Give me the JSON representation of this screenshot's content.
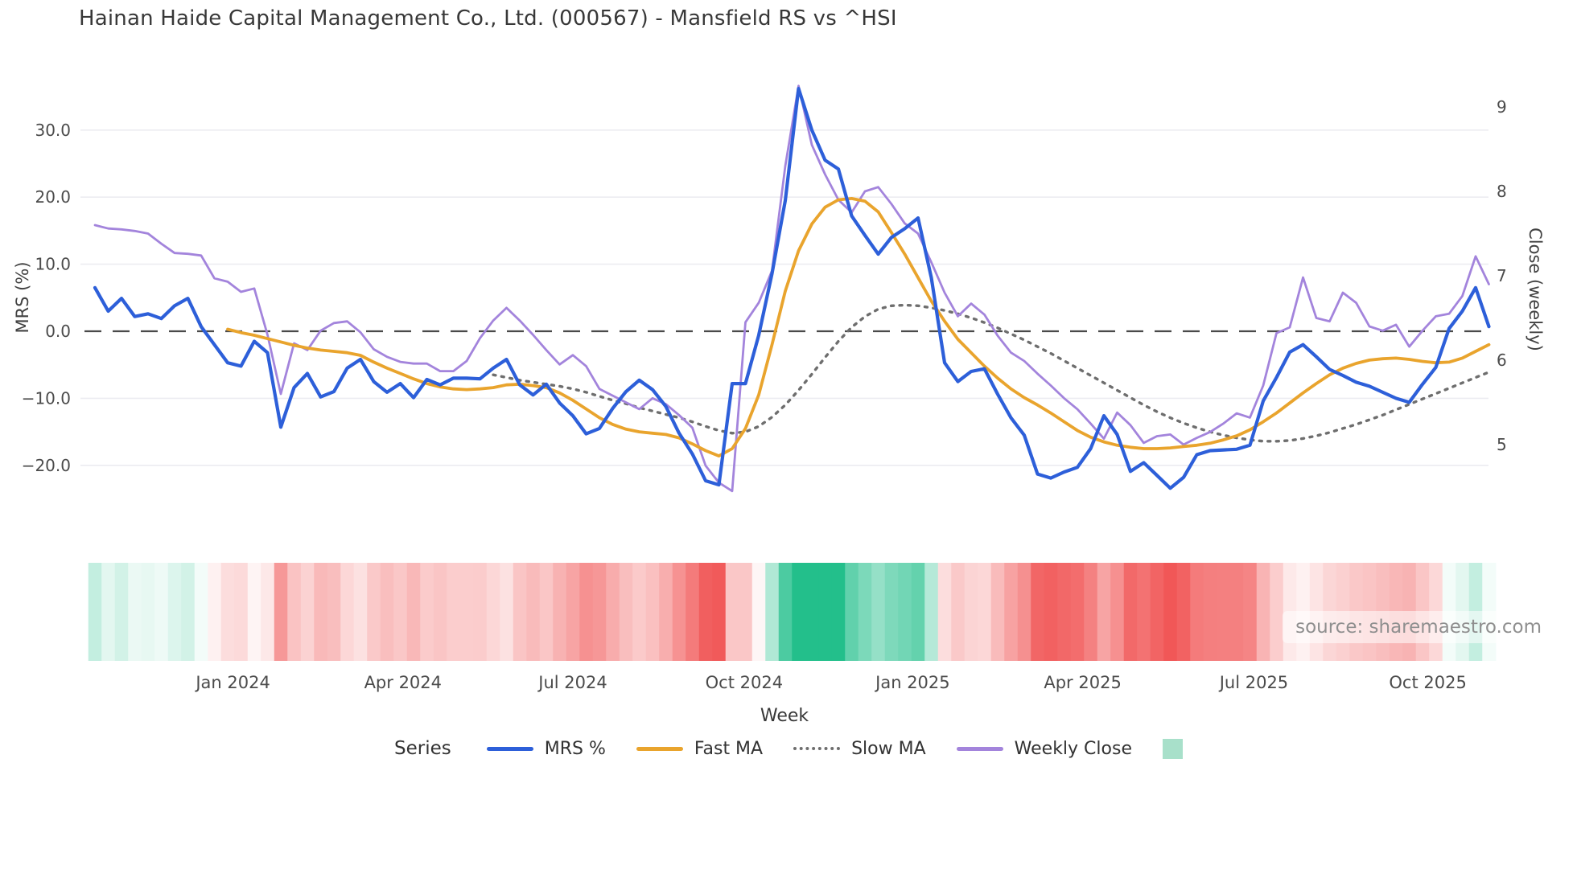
{
  "title": "Hainan Haide Capital Management Co., Ltd. (000567) - Mansfield RS vs ^HSI",
  "watermark": "source: sharemaestro.com",
  "x_axis_title": "Week",
  "legend": {
    "title": "Series",
    "items": [
      {
        "label": "MRS %",
        "swatch": "line",
        "color": "#2d5fd9"
      },
      {
        "label": "Fast MA",
        "swatch": "line",
        "color": "#e9a42d"
      },
      {
        "label": "Slow MA",
        "swatch": "dotted-line",
        "color": "#6e6e6e"
      },
      {
        "label": "Weekly Close",
        "swatch": "line",
        "color": "#a384dc"
      },
      {
        "label": "",
        "swatch": "square",
        "color": "#a8e0ca"
      }
    ]
  },
  "colors": {
    "mrs_line": "#2d5fd9",
    "fast_ma_line": "#e9a42d",
    "slow_ma_line": "#6e6e6e",
    "weekly_close_line": "#a384dc",
    "zero_dash_line": "#4a4a4a",
    "gridline": "#ececf1",
    "tick_text": "#4b4b4b",
    "heat_positive": "#10b981",
    "heat_negative": "#ef4444",
    "legend_square": "#a8e0ca"
  },
  "chart_data": {
    "type": "line",
    "title": "Hainan Haide Capital Management Co., Ltd. (000567) - Mansfield RS vs ^HSI",
    "x_label": "Week",
    "n_weeks": 106,
    "weeks_start_date": "2023-10-23",
    "left_axis": {
      "label": "MRS (%)",
      "tick_labels": [
        "30.0",
        "20.0",
        "10.0",
        "0.0",
        "−10.0",
        "−20.0"
      ],
      "tick_values": [
        30,
        20,
        10,
        0,
        -10,
        -20
      ],
      "range": [
        -26,
        39
      ],
      "zero_line_dashed": true,
      "grid": true
    },
    "right_axis": {
      "label": "Close (weekly)",
      "tick_labels": [
        "9",
        "8",
        "7",
        "6",
        "5"
      ],
      "tick_values": [
        9,
        8,
        7,
        6,
        5
      ],
      "range": [
        4.3,
        9.45
      ],
      "grid": false
    },
    "x_ticks": [
      {
        "label": "Jan 2024",
        "week_index": 10.4
      },
      {
        "label": "Apr 2024",
        "week_index": 23.2
      },
      {
        "label": "Jul 2024",
        "week_index": 36.0
      },
      {
        "label": "Oct 2024",
        "week_index": 48.9
      },
      {
        "label": "Jan 2025",
        "week_index": 61.6
      },
      {
        "label": "Apr 2025",
        "week_index": 74.4
      },
      {
        "label": "Jul 2025",
        "week_index": 87.3
      },
      {
        "label": "Oct 2025",
        "week_index": 100.4
      }
    ],
    "series": [
      {
        "name": "MRS %",
        "axis": "left",
        "style": "solid",
        "width": 4.2,
        "color": "#2d5fd9",
        "values": [
          6.5,
          3.0,
          4.9,
          2.2,
          2.6,
          1.9,
          3.8,
          4.9,
          0.7,
          -2.0,
          -4.7,
          -5.2,
          -1.5,
          -3.2,
          -14.3,
          -8.4,
          -6.3,
          -9.8,
          -9.0,
          -5.5,
          -4.2,
          -7.5,
          -9.1,
          -7.8,
          -9.9,
          -7.2,
          -8.0,
          -7.0,
          -7.0,
          -7.1,
          -5.5,
          -4.2,
          -8.0,
          -9.5,
          -7.9,
          -10.7,
          -12.6,
          -15.3,
          -14.5,
          -11.5,
          -9.0,
          -7.3,
          -8.7,
          -11.2,
          -15.2,
          -18.3,
          -22.3,
          -22.9,
          -7.8,
          -7.8,
          -0.6,
          8.6,
          19.5,
          36.2,
          30.0,
          25.5,
          24.2,
          17.2,
          14.3,
          11.5,
          14.0,
          15.3,
          16.9,
          8.0,
          -4.7,
          -7.5,
          -6.0,
          -5.6,
          -9.4,
          -12.9,
          -15.5,
          -21.3,
          -21.9,
          -21.0,
          -20.3,
          -17.5,
          -12.6,
          -15.4,
          -20.9,
          -19.6,
          -21.5,
          -23.4,
          -21.8,
          -18.4,
          -17.8,
          -17.7,
          -17.6,
          -17.0,
          -10.4,
          -6.9,
          -3.1,
          -2.0,
          -3.8,
          -5.7,
          -6.6,
          -7.6,
          -8.2,
          -9.1,
          -10.0,
          -10.6,
          -7.9,
          -5.4,
          0.4,
          3.0,
          6.5,
          0.7
        ]
      },
      {
        "name": "Fast MA",
        "axis": "left",
        "style": "solid",
        "width": 3.8,
        "color": "#e9a42d",
        "values": [
          null,
          null,
          null,
          null,
          null,
          null,
          null,
          null,
          null,
          null,
          0.3,
          -0.2,
          -0.6,
          -1.1,
          -1.6,
          -2.1,
          -2.5,
          -2.8,
          -3.0,
          -3.2,
          -3.6,
          -4.6,
          -5.5,
          -6.3,
          -7.1,
          -7.8,
          -8.3,
          -8.6,
          -8.7,
          -8.6,
          -8.4,
          -8.0,
          -7.9,
          -8.1,
          -8.4,
          -9.2,
          -10.3,
          -11.6,
          -12.9,
          -13.9,
          -14.6,
          -15.0,
          -15.2,
          -15.4,
          -15.9,
          -16.8,
          -17.8,
          -18.6,
          -17.5,
          -14.5,
          -9.5,
          -2.0,
          6.0,
          12.0,
          16.0,
          18.5,
          19.6,
          19.8,
          19.4,
          17.8,
          14.7,
          11.5,
          8.0,
          4.5,
          1.5,
          -1.2,
          -3.2,
          -5.2,
          -7.0,
          -8.6,
          -9.9,
          -11.0,
          -12.2,
          -13.5,
          -14.8,
          -15.8,
          -16.5,
          -17.0,
          -17.3,
          -17.5,
          -17.5,
          -17.4,
          -17.2,
          -17.0,
          -16.7,
          -16.2,
          -15.6,
          -14.7,
          -13.5,
          -12.2,
          -10.7,
          -9.2,
          -7.8,
          -6.5,
          -5.5,
          -4.8,
          -4.3,
          -4.1,
          -4.0,
          -4.2,
          -4.5,
          -4.7,
          -4.6,
          -4.0,
          -3.0,
          -2.0
        ]
      },
      {
        "name": "Slow MA",
        "axis": "left",
        "style": "dotted",
        "width": 3.4,
        "color": "#6e6e6e",
        "values": [
          null,
          null,
          null,
          null,
          null,
          null,
          null,
          null,
          null,
          null,
          null,
          null,
          null,
          null,
          null,
          null,
          null,
          null,
          null,
          null,
          null,
          null,
          null,
          null,
          null,
          null,
          null,
          null,
          null,
          null,
          -6.5,
          -6.9,
          -7.3,
          -7.6,
          -7.9,
          -8.2,
          -8.6,
          -9.1,
          -9.7,
          -10.3,
          -10.8,
          -11.4,
          -11.9,
          -12.4,
          -12.9,
          -13.5,
          -14.2,
          -14.8,
          -15.2,
          -15.0,
          -14.2,
          -12.8,
          -11.0,
          -8.8,
          -6.4,
          -3.9,
          -1.5,
          0.6,
          2.2,
          3.3,
          3.8,
          3.9,
          3.8,
          3.5,
          3.1,
          2.6,
          2.0,
          1.3,
          0.5,
          -0.4,
          -1.3,
          -2.3,
          -3.3,
          -4.4,
          -5.5,
          -6.6,
          -7.7,
          -8.8,
          -9.9,
          -11.0,
          -12.0,
          -12.9,
          -13.7,
          -14.4,
          -15.0,
          -15.5,
          -15.9,
          -16.2,
          -16.4,
          -16.4,
          -16.3,
          -16.0,
          -15.6,
          -15.1,
          -14.5,
          -13.9,
          -13.2,
          -12.5,
          -11.7,
          -10.9,
          -10.1,
          -9.3,
          -8.5,
          -7.7,
          -6.9,
          -6.1
        ]
      },
      {
        "name": "Weekly Close",
        "axis": "right",
        "style": "solid",
        "width": 2.8,
        "color": "#a384dc",
        "values": [
          7.6,
          7.56,
          7.55,
          7.53,
          7.5,
          7.38,
          7.27,
          7.26,
          7.24,
          6.97,
          6.93,
          6.81,
          6.85,
          6.3,
          5.6,
          6.2,
          6.12,
          6.35,
          6.44,
          6.46,
          6.33,
          6.13,
          6.04,
          5.98,
          5.96,
          5.96,
          5.87,
          5.87,
          5.99,
          6.26,
          6.47,
          6.62,
          6.47,
          6.3,
          6.12,
          5.95,
          6.06,
          5.93,
          5.66,
          5.58,
          5.5,
          5.42,
          5.55,
          5.48,
          5.35,
          5.2,
          4.75,
          4.55,
          4.45,
          6.45,
          6.68,
          7.06,
          8.3,
          9.25,
          8.55,
          8.2,
          7.9,
          7.75,
          8.0,
          8.05,
          7.85,
          7.62,
          7.5,
          7.16,
          6.8,
          6.52,
          6.67,
          6.54,
          6.29,
          6.09,
          5.99,
          5.84,
          5.7,
          5.55,
          5.42,
          5.25,
          5.07,
          5.38,
          5.23,
          5.02,
          5.1,
          5.12,
          5.0,
          5.08,
          5.15,
          5.25,
          5.37,
          5.32,
          5.7,
          6.32,
          6.39,
          6.98,
          6.5,
          6.46,
          6.8,
          6.68,
          6.4,
          6.35,
          6.42,
          6.16,
          6.35,
          6.52,
          6.55,
          6.76,
          7.23,
          6.9
        ]
      }
    ],
    "heatmap": {
      "based_on": "MRS %",
      "positive_color": "#10b981",
      "negative_color": "#ef4444",
      "full_intensity_abs_value": 26,
      "legend_swatch_color": "#a8e0ca"
    }
  }
}
